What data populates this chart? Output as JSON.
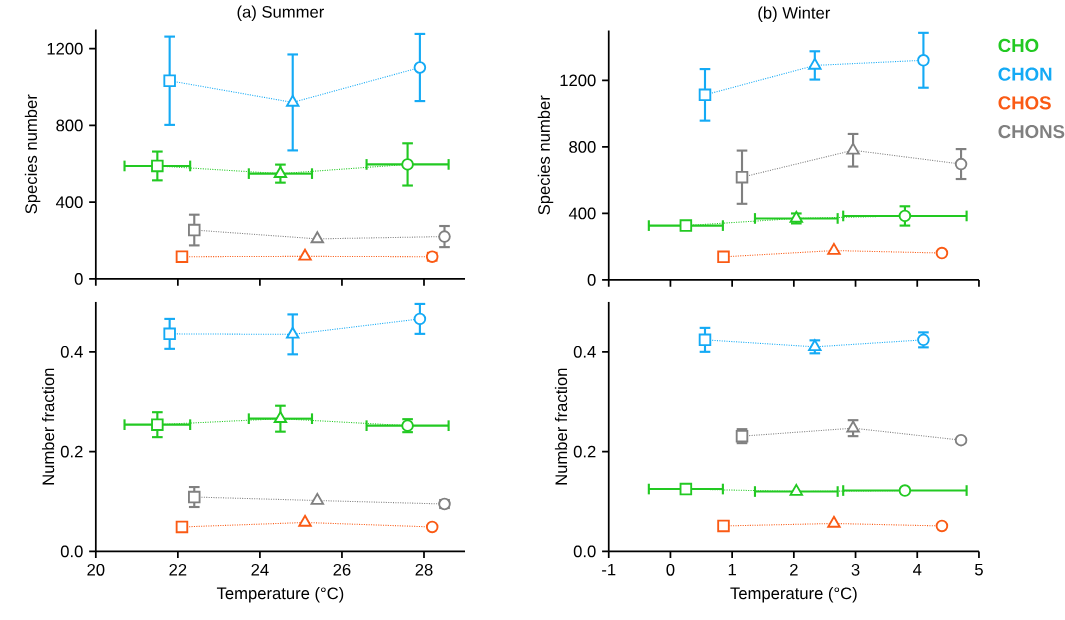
{
  "chart_data": [
    {
      "type": "line",
      "title": "(a) Summer",
      "ylabel": "Species number",
      "xlim": [
        20,
        29
      ],
      "xticks": [
        20,
        22,
        24,
        26,
        28
      ],
      "ylim": [
        0,
        1300
      ],
      "yticks": [
        0,
        400,
        800,
        1200
      ],
      "tick_labels": "y",
      "line_style": "dotted",
      "marker": [
        "square",
        "triangle",
        "circle"
      ],
      "series": [
        {
          "color": "#22c922",
          "x": [
            21.5,
            24.5,
            27.6
          ],
          "values": [
            589,
            549,
            597
          ],
          "errors": [
            75,
            47,
            110
          ],
          "xerrors": [
            0.8,
            0.77,
            1.0
          ]
        },
        {
          "color": "#14aaf5",
          "x": [
            21.8,
            24.8,
            27.9
          ],
          "values": [
            1033,
            920,
            1102
          ],
          "errors": [
            230,
            250,
            175
          ],
          "xerrors": [
            null,
            null,
            null
          ]
        },
        {
          "color": "#fa5a14",
          "x": [
            22.1,
            25.1,
            28.2
          ],
          "values": [
            116,
            118,
            116
          ],
          "errors": [
            null,
            null,
            20
          ],
          "xerrors": [
            null,
            null,
            null
          ]
        },
        {
          "color": "#808080",
          "x": [
            22.4,
            25.4,
            28.5
          ],
          "values": [
            255,
            209,
            221
          ],
          "errors": [
            80,
            null,
            55
          ],
          "xerrors": [
            null,
            null,
            null
          ]
        }
      ]
    },
    {
      "type": "line",
      "title": "(b) Winter",
      "ylabel": "Species number",
      "xlim": [
        -1,
        5
      ],
      "xticks": [
        -1,
        0,
        1,
        2,
        3,
        4,
        5
      ],
      "ylim": [
        0,
        1500
      ],
      "yticks": [
        0,
        400,
        800,
        1200
      ],
      "tick_labels": "y",
      "line_style": "dotted",
      "marker": [
        "square",
        "triangle",
        "circle"
      ],
      "legend": "right",
      "series": [
        {
          "name": "CHO",
          "color": "#22c922",
          "x": [
            0.25,
            2.04,
            3.8
          ],
          "values": [
            327,
            370,
            385
          ],
          "errors": [
            15,
            30,
            58
          ],
          "xerrors": [
            0.6,
            0.67,
            1.0
          ]
        },
        {
          "name": "CHON",
          "color": "#14aaf5",
          "x": [
            0.56,
            2.34,
            4.1
          ],
          "values": [
            1113,
            1290,
            1321
          ],
          "errors": [
            155,
            85,
            165
          ],
          "xerrors": [
            null,
            null,
            null
          ]
        },
        {
          "name": "CHOS",
          "color": "#fa5a14",
          "x": [
            0.86,
            2.65,
            4.4
          ],
          "values": [
            139,
            177,
            162
          ],
          "errors": [
            null,
            null,
            null
          ],
          "xerrors": [
            null,
            null,
            null
          ]
        },
        {
          "name": "CHONS",
          "color": "#808080",
          "x": [
            1.16,
            2.96,
            4.71
          ],
          "values": [
            618,
            780,
            697
          ],
          "errors": [
            160,
            98,
            90
          ],
          "xerrors": [
            null,
            null,
            null
          ]
        }
      ]
    },
    {
      "type": "line",
      "xlabel": "Temperature (°C)",
      "ylabel": "Number fraction",
      "xlim": [
        20,
        29
      ],
      "xticks": [
        20,
        22,
        24,
        26,
        28
      ],
      "ylim": [
        0,
        0.5
      ],
      "yticks": [
        {
          "value": 0,
          "label": "0.0"
        },
        0.2,
        0.4
      ],
      "line_style": "dotted",
      "marker": [
        "square",
        "triangle",
        "circle"
      ],
      "series": [
        {
          "color": "#22c922",
          "x": [
            21.5,
            24.5,
            27.6
          ],
          "values": [
            0.254,
            0.266,
            0.252
          ],
          "errors": [
            0.025,
            0.026,
            0.013
          ],
          "xerrors": [
            0.8,
            0.77,
            1.0
          ]
        },
        {
          "color": "#14aaf5",
          "x": [
            21.8,
            24.8,
            27.9
          ],
          "values": [
            0.436,
            0.435,
            0.466
          ],
          "errors": [
            0.03,
            0.04,
            0.03
          ],
          "xerrors": [
            null,
            null,
            null
          ]
        },
        {
          "color": "#fa5a14",
          "x": [
            22.1,
            25.1,
            28.2
          ],
          "values": [
            0.049,
            0.058,
            0.049
          ],
          "errors": [
            null,
            null,
            null
          ],
          "xerrors": [
            null,
            null,
            null
          ]
        },
        {
          "color": "#808080",
          "x": [
            22.4,
            25.4,
            28.5
          ],
          "values": [
            0.109,
            0.102,
            0.095
          ],
          "errors": [
            0.02,
            null,
            0.008
          ],
          "xerrors": [
            null,
            null,
            null
          ]
        }
      ]
    },
    {
      "type": "line",
      "xlabel": "Temperature (°C)",
      "ylabel": "Number fraction",
      "xlim": [
        -1,
        5
      ],
      "xticks": [
        -1,
        0,
        1,
        2,
        3,
        4,
        5
      ],
      "ylim": [
        0,
        0.5
      ],
      "yticks": [
        {
          "value": 0,
          "label": "0.0"
        },
        0.2,
        0.4
      ],
      "line_style": "dotted",
      "marker": [
        "square",
        "triangle",
        "circle"
      ],
      "series": [
        {
          "color": "#22c922",
          "x": [
            0.25,
            2.04,
            3.8
          ],
          "values": [
            0.125,
            0.12,
            0.122
          ],
          "errors": [
            null,
            null,
            null
          ],
          "xerrors": [
            0.6,
            0.67,
            1.0
          ]
        },
        {
          "color": "#14aaf5",
          "x": [
            0.56,
            2.34,
            4.1
          ],
          "values": [
            0.424,
            0.41,
            0.424
          ],
          "errors": [
            0.024,
            0.013,
            0.015
          ],
          "xerrors": [
            null,
            null,
            null
          ]
        },
        {
          "color": "#fa5a14",
          "x": [
            0.86,
            2.65,
            4.4
          ],
          "values": [
            0.051,
            0.056,
            0.051
          ],
          "errors": [
            null,
            null,
            null
          ],
          "xerrors": [
            null,
            null,
            null
          ]
        },
        {
          "color": "#808080",
          "x": [
            1.16,
            2.96,
            4.71
          ],
          "values": [
            0.231,
            0.247,
            0.223
          ],
          "errors": [
            0.014,
            0.016,
            null
          ],
          "xerrors": [
            null,
            null,
            null
          ]
        }
      ]
    }
  ]
}
